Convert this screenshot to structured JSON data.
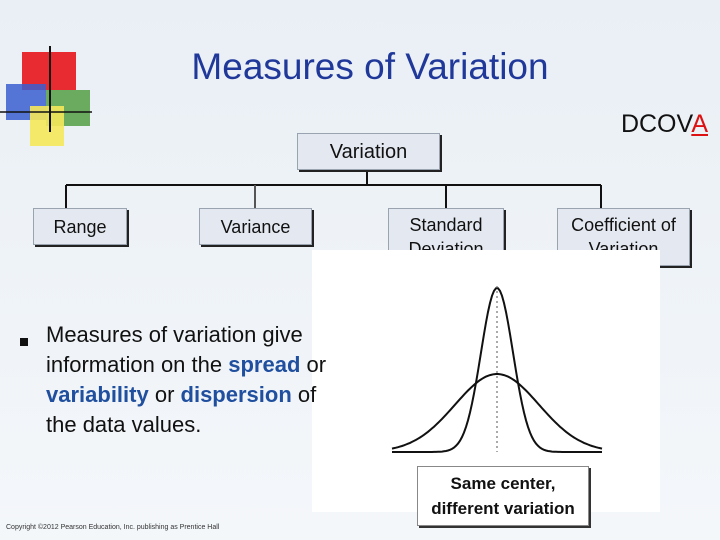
{
  "header": {
    "title": "Measures of Variation",
    "tag": {
      "prefix": "DCOV",
      "highlight": "A"
    }
  },
  "tree": {
    "root": "Variation",
    "children": [
      "Range",
      "Variance",
      "Standard Deviation",
      "Coefficient of Variation"
    ]
  },
  "bullet": {
    "parts": [
      "Measures of variation give information on the ",
      "spread",
      " or ",
      "variability",
      " or ",
      "dispersion",
      " of the data values."
    ]
  },
  "figure": {
    "caption": "Same center, different variation"
  },
  "footer": "Copyright ©2012 Pearson Education, Inc. publishing as Prentice Hall"
}
